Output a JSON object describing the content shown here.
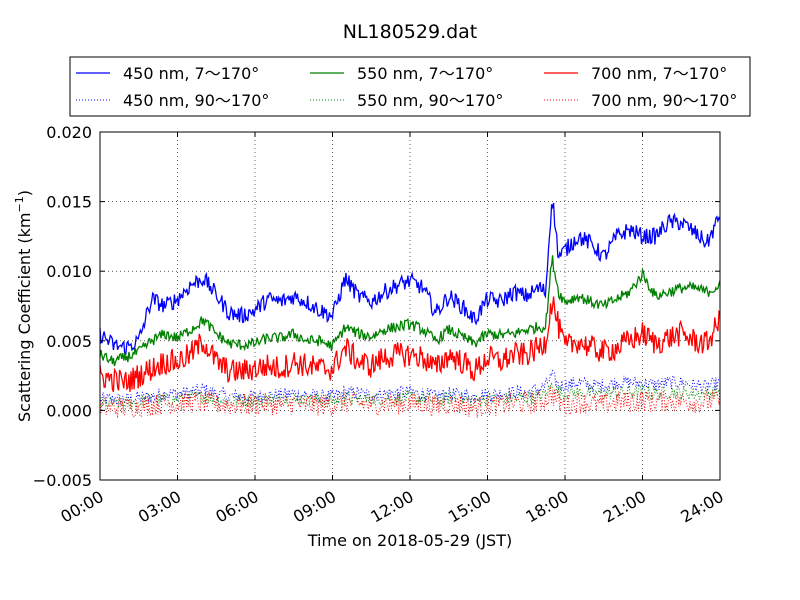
{
  "chart_data": {
    "type": "line",
    "title": "NL180529.dat",
    "xlabel": "Time on 2018-05-29 (JST)",
    "ylabel_main": "Scattering Coefficient (km",
    "ylabel_sup": "−1",
    "ylabel_close": ")",
    "xlim": [
      0,
      24
    ],
    "ylim": [
      -0.005,
      0.02
    ],
    "grid": true,
    "legend_position": "top",
    "xticks": [
      {
        "value": 0,
        "label": "00:00"
      },
      {
        "value": 3,
        "label": "03:00"
      },
      {
        "value": 6,
        "label": "06:00"
      },
      {
        "value": 9,
        "label": "09:00"
      },
      {
        "value": 12,
        "label": "12:00"
      },
      {
        "value": 15,
        "label": "15:00"
      },
      {
        "value": 18,
        "label": "18:00"
      },
      {
        "value": 21,
        "label": "21:00"
      },
      {
        "value": 24,
        "label": "24:00"
      }
    ],
    "yticks": [
      {
        "value": -0.005,
        "label": "−0.005"
      },
      {
        "value": 0,
        "label": "0.000"
      },
      {
        "value": 0.005,
        "label": "0.005"
      },
      {
        "value": 0.01,
        "label": "0.010"
      },
      {
        "value": 0.015,
        "label": "0.015"
      },
      {
        "value": 0.02,
        "label": "0.020"
      }
    ],
    "x": [
      0,
      0.5,
      1,
      1.5,
      2,
      2.5,
      3,
      3.5,
      4,
      4.5,
      5,
      5.5,
      6,
      6.5,
      7,
      7.5,
      8,
      8.5,
      9,
      9.5,
      10,
      10.5,
      11,
      11.5,
      12,
      12.5,
      13,
      13.5,
      14,
      14.5,
      15,
      15.5,
      16,
      16.5,
      17,
      17.25,
      17.5,
      17.75,
      18,
      18.5,
      19,
      19.5,
      20,
      20.5,
      21,
      21.5,
      22,
      22.5,
      23,
      23.5,
      24
    ],
    "series": [
      {
        "name": "450 nm, 7～170°",
        "color": "#0000ff",
        "style": "solid",
        "noise": 0.0006,
        "values": [
          0.0055,
          0.0047,
          0.0045,
          0.005,
          0.008,
          0.0075,
          0.008,
          0.009,
          0.0095,
          0.0083,
          0.007,
          0.0068,
          0.0072,
          0.008,
          0.0078,
          0.0082,
          0.0078,
          0.0072,
          0.0068,
          0.0095,
          0.0082,
          0.0078,
          0.0085,
          0.009,
          0.0093,
          0.0088,
          0.007,
          0.0082,
          0.0075,
          0.0065,
          0.008,
          0.0078,
          0.0085,
          0.0082,
          0.0088,
          0.0085,
          0.0155,
          0.011,
          0.0115,
          0.0125,
          0.012,
          0.011,
          0.0125,
          0.013,
          0.0125,
          0.0125,
          0.0135,
          0.0135,
          0.0128,
          0.012,
          0.014
        ]
      },
      {
        "name": "550 nm, 7～170°",
        "color": "#008000",
        "style": "solid",
        "noise": 0.0004,
        "values": [
          0.004,
          0.0035,
          0.0038,
          0.0042,
          0.005,
          0.0055,
          0.0052,
          0.0058,
          0.0065,
          0.0055,
          0.0048,
          0.0047,
          0.0048,
          0.0052,
          0.0052,
          0.0055,
          0.005,
          0.005,
          0.0046,
          0.006,
          0.0055,
          0.0053,
          0.0058,
          0.006,
          0.0062,
          0.0058,
          0.005,
          0.0058,
          0.0053,
          0.0048,
          0.0055,
          0.0054,
          0.0055,
          0.0058,
          0.006,
          0.006,
          0.011,
          0.0085,
          0.0078,
          0.0082,
          0.0078,
          0.0075,
          0.008,
          0.0085,
          0.0098,
          0.0082,
          0.0085,
          0.0088,
          0.0088,
          0.0085,
          0.009
        ]
      },
      {
        "name": "700 nm, 7～170°",
        "color": "#ff0000",
        "style": "solid",
        "noise": 0.0009,
        "values": [
          0.0025,
          0.0022,
          0.002,
          0.0025,
          0.003,
          0.0035,
          0.0035,
          0.004,
          0.005,
          0.0035,
          0.0028,
          0.0028,
          0.003,
          0.0032,
          0.003,
          0.0035,
          0.0032,
          0.003,
          0.003,
          0.0045,
          0.0035,
          0.0032,
          0.0038,
          0.004,
          0.004,
          0.0038,
          0.003,
          0.004,
          0.0035,
          0.0028,
          0.0038,
          0.0035,
          0.004,
          0.004,
          0.0045,
          0.005,
          0.008,
          0.006,
          0.0045,
          0.005,
          0.0045,
          0.0042,
          0.0045,
          0.005,
          0.0055,
          0.0048,
          0.0052,
          0.0055,
          0.005,
          0.0048,
          0.0065
        ]
      },
      {
        "name": "450 nm, 90～170°",
        "color": "#0000ff",
        "style": "dotted",
        "noise": 0.0005,
        "values": [
          0.0008,
          0.0008,
          0.0008,
          0.0009,
          0.001,
          0.0012,
          0.0012,
          0.0013,
          0.0015,
          0.0012,
          0.001,
          0.001,
          0.001,
          0.0011,
          0.0011,
          0.0012,
          0.0011,
          0.001,
          0.001,
          0.0013,
          0.0012,
          0.0011,
          0.0012,
          0.0013,
          0.0013,
          0.0012,
          0.001,
          0.0012,
          0.0011,
          0.001,
          0.0012,
          0.0012,
          0.0013,
          0.0013,
          0.0015,
          0.0018,
          0.0025,
          0.0018,
          0.0018,
          0.002,
          0.0018,
          0.0018,
          0.002,
          0.002,
          0.002,
          0.0018,
          0.002,
          0.002,
          0.0018,
          0.0017,
          0.002
        ]
      },
      {
        "name": "550 nm, 90～170°",
        "color": "#008000",
        "style": "dotted",
        "noise": 0.0005,
        "values": [
          0.0005,
          0.0005,
          0.0005,
          0.0006,
          0.0007,
          0.0008,
          0.0008,
          0.0009,
          0.001,
          0.0008,
          0.0007,
          0.0007,
          0.0007,
          0.0008,
          0.0008,
          0.0008,
          0.0008,
          0.0007,
          0.0007,
          0.0009,
          0.0008,
          0.0008,
          0.0009,
          0.0009,
          0.0009,
          0.0009,
          0.0007,
          0.0009,
          0.0008,
          0.0007,
          0.0008,
          0.0008,
          0.0009,
          0.0009,
          0.001,
          0.0012,
          0.0018,
          0.0013,
          0.0012,
          0.0013,
          0.0012,
          0.0012,
          0.0013,
          0.0013,
          0.0014,
          0.0012,
          0.0013,
          0.0013,
          0.0012,
          0.0012,
          0.0014
        ]
      },
      {
        "name": "700 nm, 90～170°",
        "color": "#ff0000",
        "style": "dotted",
        "noise": 0.0008,
        "values": [
          0.0002,
          0.0002,
          0.0002,
          0.0003,
          0.0004,
          0.0005,
          0.0005,
          0.0006,
          0.0006,
          0.0005,
          0.0004,
          0.0004,
          0.0004,
          0.0005,
          0.0004,
          0.0005,
          0.0004,
          0.0004,
          0.0004,
          0.0006,
          0.0005,
          0.0004,
          0.0005,
          0.0005,
          0.0005,
          0.0005,
          0.0003,
          0.0005,
          0.0004,
          0.0002,
          0.0004,
          0.0004,
          0.0005,
          0.0005,
          0.0006,
          0.0008,
          0.0012,
          0.0006,
          0.0004,
          0.0006,
          0.0005,
          0.0004,
          0.0006,
          0.0006,
          0.0007,
          0.0006,
          0.0007,
          0.0007,
          0.0006,
          0.0006,
          0.0008
        ]
      }
    ],
    "legend_order": [
      0,
      1,
      2,
      3,
      4,
      5
    ]
  }
}
